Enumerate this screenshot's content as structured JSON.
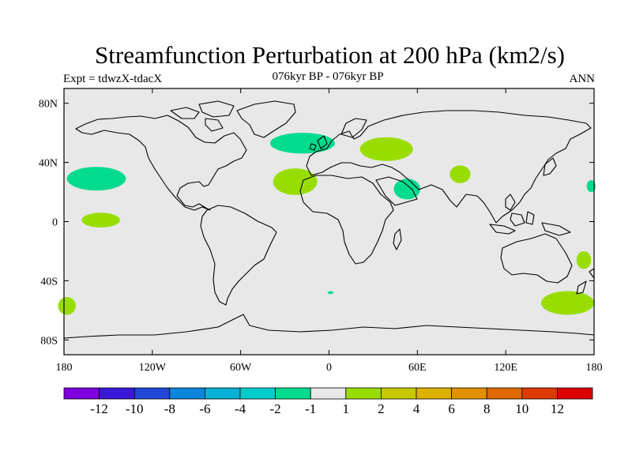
{
  "title": "Streamfunction Perturbation at 200 hPa (km2/s)",
  "subtitle": "076kyr BP - 076kyr BP",
  "left_label": "Expt = tdwzX-tdacX",
  "right_label": "ANN",
  "lat_ticks": [
    {
      "value": 80,
      "label": "80N"
    },
    {
      "value": 40,
      "label": "40N"
    },
    {
      "value": 0,
      "label": "0"
    },
    {
      "value": -40,
      "label": "40S"
    },
    {
      "value": -80,
      "label": "80S"
    }
  ],
  "lon_ticks": [
    {
      "value": -180,
      "label": "180"
    },
    {
      "value": -120,
      "label": "120W"
    },
    {
      "value": -60,
      "label": "60W"
    },
    {
      "value": 0,
      "label": "0"
    },
    {
      "value": 60,
      "label": "60E"
    },
    {
      "value": 120,
      "label": "120E"
    },
    {
      "value": 180,
      "label": "180"
    }
  ],
  "colorbar": {
    "colors": [
      "#7f00e0",
      "#3b17d9",
      "#1f48d6",
      "#0b86db",
      "#07b0d6",
      "#00cccc",
      "#00db8e",
      "#e8e8e8",
      "#99dd00",
      "#c8c800",
      "#deb000",
      "#e29000",
      "#e06900",
      "#dc3a00",
      "#dd0000"
    ],
    "labels": [
      "-12",
      "-10",
      "-8",
      "-6",
      "-4",
      "-2",
      "-1",
      "1",
      "2",
      "4",
      "6",
      "8",
      "10",
      "12"
    ]
  },
  "colors": {
    "land_ocean_background": "#e8e8e8",
    "positive_fill": "#99dd00",
    "negative_fill": "#00db8e"
  },
  "chart_data": {
    "type": "heatmap",
    "title": "Streamfunction Perturbation at 200 hPa (km2/s)",
    "subtitle": "076kyr BP - 076kyr BP",
    "experiment": "Expt = tdwzX-tdacX",
    "season": "ANN",
    "xlim": [
      -180,
      180
    ],
    "ylim": [
      -90,
      90
    ],
    "contour_levels": [
      -12,
      -10,
      -8,
      -6,
      -4,
      -2,
      -1,
      1,
      2,
      4,
      6,
      8,
      10,
      12
    ],
    "anomalies": [
      {
        "sign": "negative",
        "range": "-2 to -1",
        "lon": -158,
        "lat": 29,
        "lon_half_width": 20,
        "lat_half_height": 8
      },
      {
        "sign": "positive",
        "range": "1 to 2",
        "lon": -155,
        "lat": 1,
        "lon_half_width": 13,
        "lat_half_height": 5
      },
      {
        "sign": "negative",
        "range": "-2 to -1",
        "lon": -18,
        "lat": 53,
        "lon_half_width": 22,
        "lat_half_height": 7
      },
      {
        "sign": "positive",
        "range": "1 to 2",
        "lon": -23,
        "lat": 27,
        "lon_half_width": 15,
        "lat_half_height": 9
      },
      {
        "sign": "positive",
        "range": "1 to 2",
        "lon": 39,
        "lat": 49,
        "lon_half_width": 18,
        "lat_half_height": 8
      },
      {
        "sign": "negative",
        "range": "-2 to -1",
        "lon": 53,
        "lat": 22,
        "lon_half_width": 9,
        "lat_half_height": 7
      },
      {
        "sign": "positive",
        "range": "1 to 2",
        "lon": 89,
        "lat": 32,
        "lon_half_width": 7,
        "lat_half_height": 6
      },
      {
        "sign": "negative",
        "range": "-2 to -1",
        "lon": 178,
        "lat": 24,
        "lon_half_width": 3,
        "lat_half_height": 4
      },
      {
        "sign": "positive",
        "range": "1 to 2",
        "lon": 173,
        "lat": -26,
        "lon_half_width": 5,
        "lat_half_height": 6
      },
      {
        "sign": "positive",
        "range": "1 to 2",
        "lon": 162,
        "lat": -55,
        "lon_half_width": 18,
        "lat_half_height": 8
      },
      {
        "sign": "positive",
        "range": "1 to 2",
        "lon": -178,
        "lat": -57,
        "lon_half_width": 6,
        "lat_half_height": 6
      },
      {
        "sign": "negative",
        "range": "-2 to -1",
        "lon": 1,
        "lat": -48,
        "lon_half_width": 2,
        "lat_half_height": 1
      }
    ]
  }
}
